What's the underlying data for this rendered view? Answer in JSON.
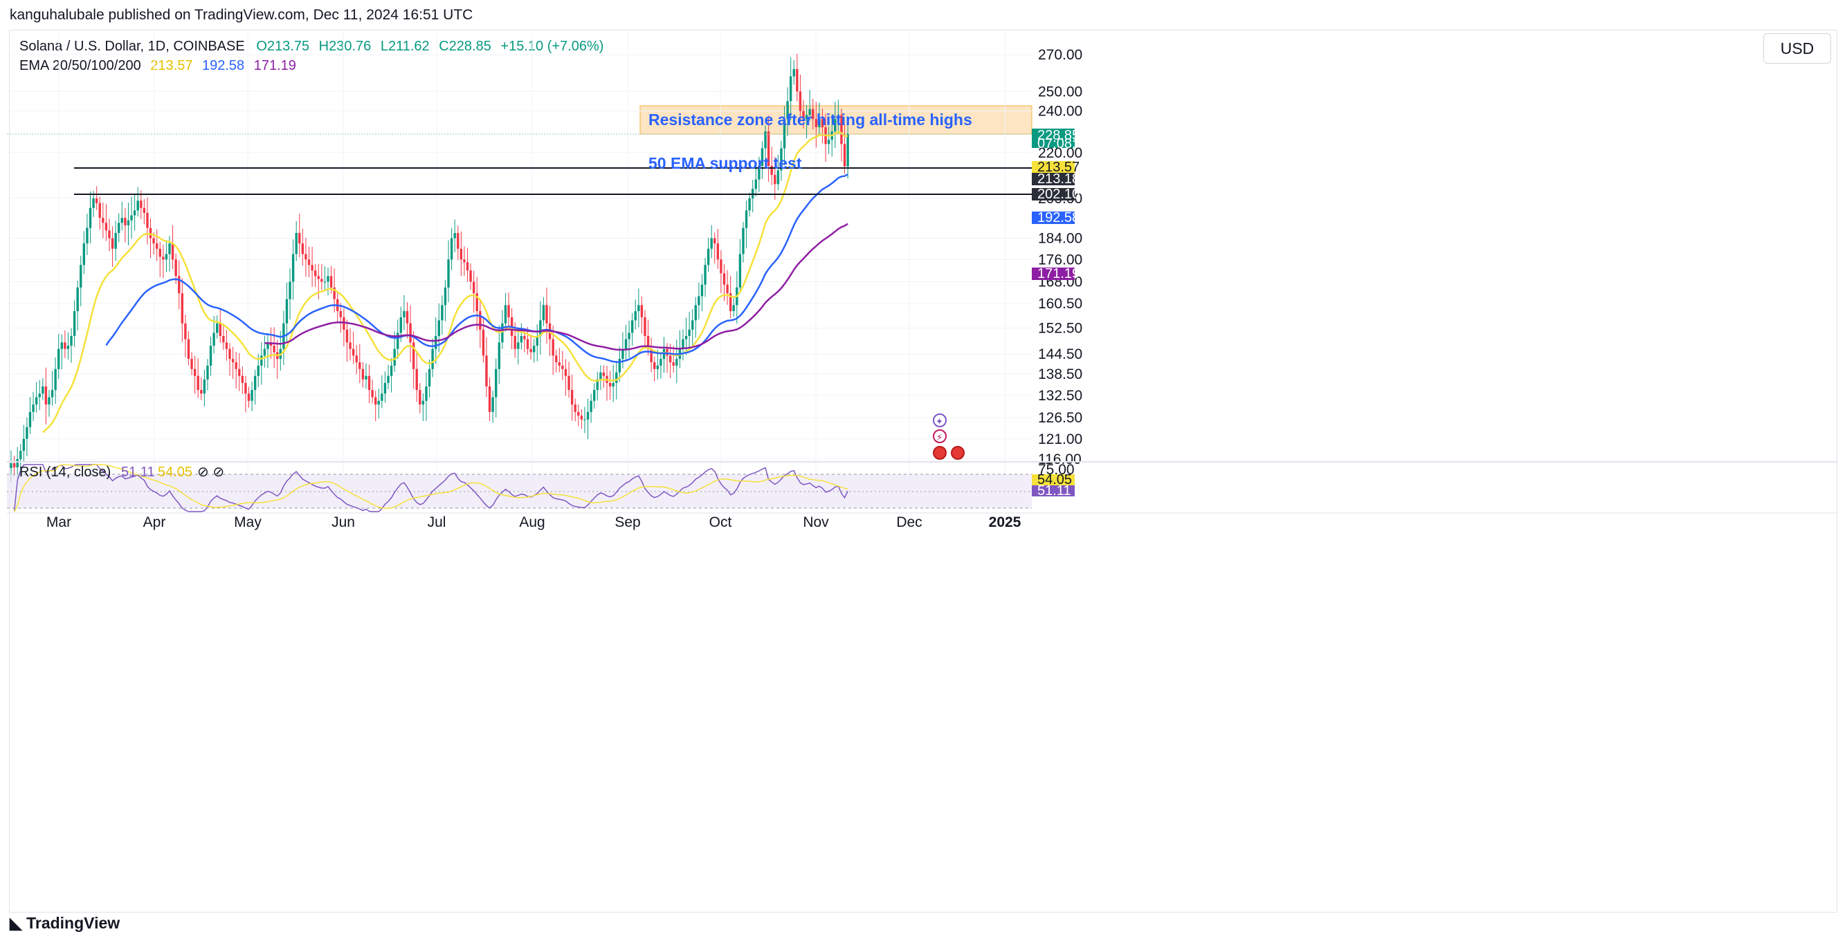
{
  "header": {
    "published_line": "kanguhalubale published on TradingView.com, Dec 11, 2024 16:51 UTC",
    "currency": "USD"
  },
  "legend": {
    "symbol": "Solana / U.S. Dollar, 1D, COINBASE",
    "open": "O213.75",
    "high": "H230.76",
    "low": "L211.62",
    "close": "C228.85",
    "change": "+15.10 (+7.06%)",
    "ema_label": "EMA 20/50/100/200",
    "ema20": "213.57",
    "ema50": "192.58",
    "ema100": "171.19",
    "rsi_label": "RSI (14, close)",
    "rsi_value": "51.11",
    "rsi_ma": "54.05",
    "rsi_icons": "⊘ ⊘"
  },
  "annotations": {
    "resistance": "Resistance zone after hitting all-time highs",
    "support": "50 EMA support test"
  },
  "price_tags": {
    "last": "228.85",
    "countdown": "07:08:49",
    "ema20": "213.57",
    "hline1": "213.18",
    "hline2": "202.10",
    "ema50": "192.58",
    "ema100": "171.19",
    "rsi_ma": "54.05",
    "rsi": "51.11",
    "rsi_top": "75.00"
  },
  "colors": {
    "up": "#089981",
    "down": "#f23645",
    "ema20": "#f5e13a",
    "ema50": "#2962ff",
    "ema100": "#8e1ea3",
    "rsi": "#7e57c2",
    "resistance_fill": "#fde5c3",
    "resistance_border": "#f5b041"
  },
  "chart_data": {
    "type": "candlestick",
    "title": "Solana / U.S. Dollar, 1D, COINBASE",
    "ylabel": "USD",
    "y_scale": "log",
    "ylim": [
      115,
      282
    ],
    "y_ticks": [
      "270.00",
      "250.00",
      "240.00",
      "220.00",
      "200.00",
      "184.00",
      "176.00",
      "168.00",
      "160.50",
      "152.50",
      "144.50",
      "138.50",
      "132.50",
      "126.50",
      "121.00",
      "116.00"
    ],
    "x_ticks": [
      "Mar",
      "Apr",
      "May",
      "Jun",
      "Jul",
      "Aug",
      "Sep",
      "Oct",
      "Nov",
      "Dec",
      "2025"
    ],
    "candles_close": [
      115,
      114,
      116,
      118,
      121,
      124,
      128,
      130,
      132,
      133,
      135,
      130,
      132,
      134,
      140,
      146,
      148,
      146,
      147,
      150,
      158,
      166,
      174,
      182,
      188,
      196,
      200,
      198,
      192,
      190,
      187,
      184,
      180,
      186,
      190,
      192,
      189,
      191,
      193,
      195,
      199,
      196,
      194,
      188,
      184,
      182,
      180,
      177,
      176,
      178,
      182,
      176,
      170,
      164,
      154,
      149,
      143,
      140,
      138,
      134,
      133,
      137,
      141,
      147,
      151,
      154,
      150,
      148,
      146,
      143,
      142,
      140,
      138,
      136,
      133,
      131,
      134,
      138,
      141,
      144,
      146,
      148,
      147,
      145,
      143,
      146,
      154,
      162,
      168,
      178,
      186,
      182,
      178,
      176,
      174,
      172,
      170,
      169,
      168,
      168,
      170,
      166,
      162,
      158,
      156,
      152,
      148,
      146,
      144,
      142,
      140,
      137,
      138,
      134,
      132,
      130,
      131,
      133,
      136,
      138,
      141,
      146,
      151,
      156,
      158,
      154,
      148,
      140,
      134,
      130,
      131,
      135,
      140,
      146,
      150,
      155,
      160,
      166,
      176,
      184,
      186,
      180,
      176,
      175,
      172,
      168,
      164,
      158,
      152,
      144,
      135,
      128,
      132,
      140,
      148,
      154,
      160,
      156,
      150,
      146,
      148,
      150,
      149,
      146,
      145,
      147,
      150,
      155,
      160,
      154,
      149,
      144,
      142,
      141,
      140,
      138,
      134,
      130,
      128,
      127,
      126,
      126,
      128,
      131,
      134,
      137,
      139,
      138,
      136,
      135,
      136,
      139,
      143,
      146,
      149,
      151,
      155,
      158,
      160,
      156,
      150,
      146,
      142,
      140,
      141,
      143,
      146,
      144,
      142,
      141,
      143,
      146,
      149,
      150,
      152,
      155,
      160,
      163,
      167,
      174,
      180,
      184,
      182,
      176,
      171,
      167,
      164,
      158,
      160,
      166,
      178,
      188,
      195,
      200,
      204,
      208,
      214,
      222,
      230,
      214,
      210,
      206,
      212,
      222,
      236,
      245,
      258,
      262,
      250,
      240,
      236,
      238,
      241,
      236,
      232,
      236,
      232,
      224,
      226,
      230,
      236,
      238,
      224,
      213.75,
      228.85
    ],
    "ema20_last": 213.57,
    "ema50_last": 192.58,
    "ema100_last": 171.19,
    "hlines": [
      213.18,
      202.1
    ],
    "resistance_zone": [
      228.9,
      242.5
    ],
    "rsi": {
      "period": 14,
      "last": 51.11,
      "ma_last": 54.05,
      "band": [
        30,
        75
      ]
    }
  }
}
